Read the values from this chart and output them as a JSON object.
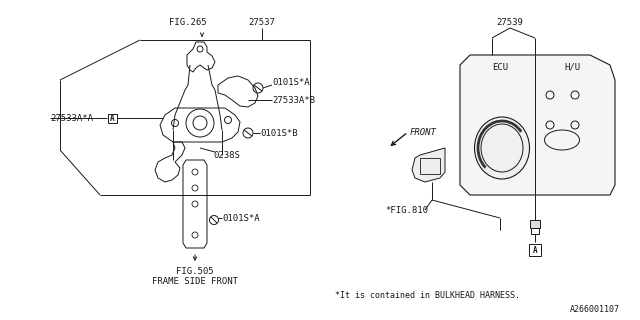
{
  "background_color": "#ffffff",
  "line_color": "#1a1a1a",
  "text_color": "#1a1a1a",
  "fig_number": "A266001107",
  "labels": {
    "fig265": "FIG.265",
    "fig505": "FIG.505",
    "frame_side_front": "FRAME SIDE FRONT",
    "part27537": "27537",
    "part27533a_a": "27533A*A",
    "part27533a_b": "27533A*B",
    "part27539": "27539",
    "ecu": "ECU",
    "hu": "H/U",
    "part0101s_a1": "0101S*A",
    "part0101s_a2": "0101S*A",
    "part0101s_b": "0101S*B",
    "part0238s": "0238S",
    "fig810": "*FIG.810",
    "front": "FRONT",
    "note": "*It is contained in BULKHEAD HARNESS.",
    "label_a1": "A",
    "label_a2": "A"
  },
  "font_size": 6.5,
  "font_size_note": 6.0,
  "font_size_small": 5.5
}
